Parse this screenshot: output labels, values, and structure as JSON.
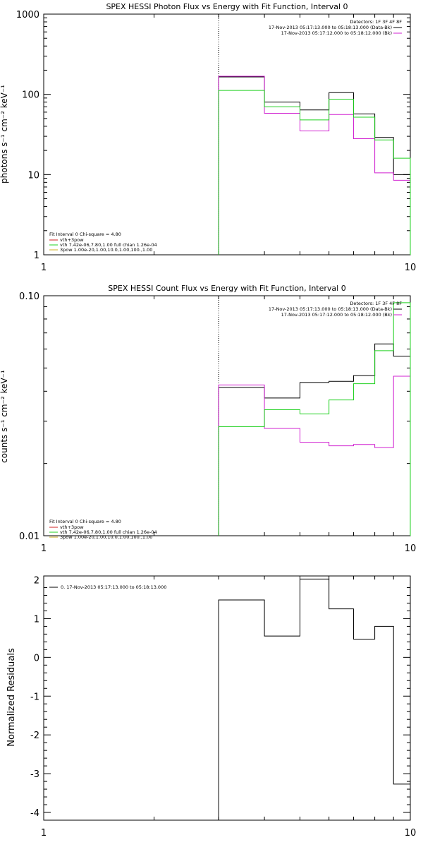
{
  "chart_data": [
    {
      "type": "line",
      "title": "SPEX HESSI Photon Flux vs Energy with Fit Function, Interval 0",
      "ylabel": "photons s⁻¹ cm⁻² keV⁻¹",
      "xscale": "log",
      "yscale": "log",
      "xlim": [
        1,
        10
      ],
      "ylim": [
        1,
        1000
      ],
      "x_ticks": [
        "1",
        "10"
      ],
      "y_ticks": [
        {
          "value": 1,
          "label": "1"
        },
        {
          "value": 10,
          "label": "10"
        },
        {
          "value": 100,
          "label": "100"
        },
        {
          "value": 1000,
          "label": "1000"
        }
      ],
      "vline": 3.0,
      "bin_edges": [
        3.0,
        4.0,
        5.0,
        6.0,
        7.0,
        8.0,
        9.0,
        10.0
      ],
      "legend_top": {
        "header": "Detectors: 1F 3F 4F 8F",
        "entries": [
          {
            "text": "17-Nov-2013 05:17:13.000 to 05:18:13.000 (Data-Bk)",
            "color": "#000000"
          },
          {
            "text": "17-Nov-2013 05:17:12.000 to 05:18:12.000 (Bk)",
            "color": "#d020d0"
          }
        ]
      },
      "legend_bottom": {
        "header": "Fit Interval 0   Chi-square = 4.80",
        "entries": [
          {
            "text": "vth+3pow",
            "color": "#d02020"
          },
          {
            "text": "vth 7.42e-06,7.80,1.00  full chian 1.26e-04",
            "color": "#20d020"
          },
          {
            "text": "3pow 1.00e-20,1.00,10.0,1.00,100.,1.00",
            "color": "#d0b020"
          }
        ]
      },
      "series": [
        {
          "color": "#000000",
          "values": [
            165,
            80,
            64,
            105,
            57,
            29,
            10
          ]
        },
        {
          "color": "#d020d0",
          "values": [
            168,
            58,
            35,
            56,
            28,
            10.5,
            8.5
          ]
        },
        {
          "color": "#20d020",
          "values": [
            112,
            70,
            48,
            87,
            52,
            27,
            16
          ]
        }
      ]
    },
    {
      "type": "line",
      "title": "SPEX HESSI Count Flux vs Energy with Fit Function, Interval 0",
      "ylabel": "counts s⁻¹ cm⁻² keV⁻¹",
      "xscale": "log",
      "yscale": "log",
      "xlim": [
        1,
        10
      ],
      "ylim": [
        0.01,
        0.1
      ],
      "x_ticks": [
        "1",
        "10"
      ],
      "y_ticks": [
        {
          "value": 0.01,
          "label": "0.01"
        },
        {
          "value": 0.1,
          "label": "0.10"
        }
      ],
      "vline": 3.0,
      "bin_edges": [
        3.0,
        4.0,
        5.0,
        6.0,
        7.0,
        8.0,
        9.0,
        10.0
      ],
      "legend_top": {
        "header": "Detectors: 1F 3F 4F 8F",
        "entries": [
          {
            "text": "17-Nov-2013 05:17:13.000 to 05:18:13.000 (Data-Bk)",
            "color": "#000000"
          },
          {
            "text": "17-Nov-2013 05:17:12.000 to 05:18:12.000 (Bk)",
            "color": "#d020d0"
          }
        ]
      },
      "legend_bottom": {
        "header": "Fit Interval 0   Chi-square = 4.80",
        "entries": [
          {
            "text": "vth+3pow",
            "color": "#d02020"
          },
          {
            "text": "vth 7.42e-06,7.80,1.00  full chian 1.26e-04",
            "color": "#20d020"
          },
          {
            "text": "3pow 1.00e-20,1.00,10.0,1.00,100.,1.00",
            "color": "#d0b020"
          }
        ]
      },
      "series": [
        {
          "color": "#000000",
          "values": [
            0.0415,
            0.0375,
            0.0435,
            0.044,
            0.0465,
            0.063,
            0.056
          ]
        },
        {
          "color": "#d020d0",
          "values": [
            0.0425,
            0.028,
            0.0245,
            0.0237,
            0.024,
            0.0233,
            0.0462
          ]
        },
        {
          "color": "#20d020",
          "values": [
            0.0285,
            0.0335,
            0.0322,
            0.0368,
            0.043,
            0.059,
            0.0935
          ]
        }
      ]
    },
    {
      "type": "line",
      "title": "",
      "ylabel": "Normalized Residuals",
      "xscale": "log",
      "yscale": "linear",
      "xlim": [
        1,
        10
      ],
      "ylim": [
        -4.2,
        2.1
      ],
      "x_ticks": [
        "1",
        "10"
      ],
      "y_ticks": [
        {
          "value": 2,
          "label": "2"
        },
        {
          "value": 1,
          "label": "1"
        },
        {
          "value": 0,
          "label": "0"
        },
        {
          "value": -1,
          "label": "-1"
        },
        {
          "value": -2,
          "label": "-2"
        },
        {
          "value": -3,
          "label": "-3"
        },
        {
          "value": -4,
          "label": "-4"
        }
      ],
      "bin_edges": [
        3.0,
        4.0,
        5.0,
        6.0,
        7.0,
        8.0,
        9.0,
        10.0
      ],
      "legend_top": {
        "header": "",
        "entries": [
          {
            "text": "0. 17-Nov-2013 05:17:13.000 to 05:18:13.000",
            "color": "#000000"
          }
        ]
      },
      "series": [
        {
          "color": "#000000",
          "values": [
            1.48,
            0.55,
            2.02,
            1.25,
            0.47,
            0.8,
            -3.27
          ]
        }
      ]
    }
  ]
}
